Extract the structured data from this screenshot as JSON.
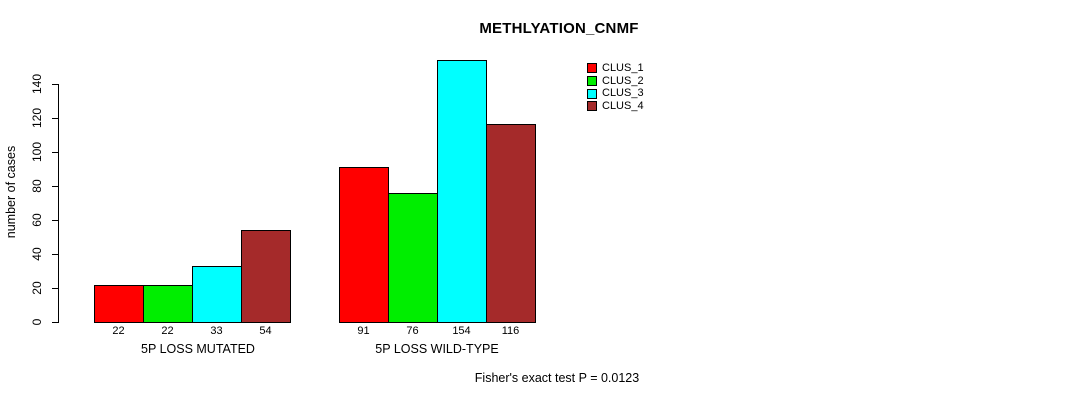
{
  "chart_data": {
    "type": "bar",
    "title": "METHLYATION_CNMF",
    "ylabel": "number of cases",
    "xlabel": "",
    "categories": [
      "5P LOSS MUTATED",
      "5P LOSS WILD-TYPE"
    ],
    "series": [
      {
        "name": "CLUS_1",
        "color": "#ff0000",
        "values": [
          22,
          91
        ]
      },
      {
        "name": "CLUS_2",
        "color": "#00ee00",
        "values": [
          22,
          76
        ]
      },
      {
        "name": "CLUS_3",
        "color": "#00ffff",
        "values": [
          33,
          154
        ]
      },
      {
        "name": "CLUS_4",
        "color": "#a52a2a",
        "values": [
          54,
          116
        ]
      }
    ],
    "bar_value_labels": [
      [
        "22",
        "22",
        "33",
        "54"
      ],
      [
        "91",
        "76",
        "154",
        "116"
      ]
    ],
    "yticks": [
      0,
      20,
      40,
      60,
      80,
      100,
      120,
      140
    ],
    "ylim": [
      0,
      140
    ],
    "grid": false,
    "legend_position": "top-right",
    "legend_entries": [
      "CLUS_1",
      "CLUS_2",
      "CLUS_3",
      "CLUS_4"
    ]
  },
  "footer": {
    "caption": "Fisher's exact test P = 0.0123"
  }
}
